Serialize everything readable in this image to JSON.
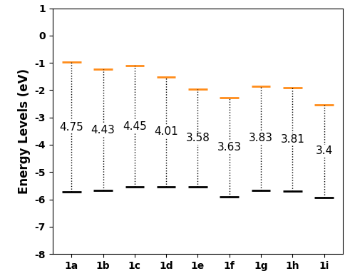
{
  "chart_data": {
    "type": "energy_level",
    "y_label": "Energy Levels (eV)",
    "categories": [
      "1a",
      "1b",
      "1c",
      "1d",
      "1e",
      "1f",
      "1g",
      "1h",
      "1i"
    ],
    "series": [
      {
        "color": "#ff8c1a",
        "values": [
          -0.98,
          -1.24,
          -1.1,
          -1.52,
          -1.97,
          -2.28,
          -1.85,
          -1.9,
          -2.53
        ]
      },
      {
        "color": "#000000",
        "values": [
          -5.73,
          -5.67,
          -5.55,
          -5.53,
          -5.55,
          -5.91,
          -5.68,
          -5.71,
          -5.93
        ]
      }
    ],
    "gaps": [
      4.75,
      4.43,
      4.45,
      4.01,
      3.58,
      3.63,
      3.83,
      3.81,
      3.4
    ],
    "ylim": [
      -8,
      1
    ],
    "yticks": [
      -8,
      -7,
      -6,
      -5,
      -4,
      -3,
      -2,
      -1,
      0,
      1
    ],
    "line_style": "dotted",
    "grid": false
  }
}
